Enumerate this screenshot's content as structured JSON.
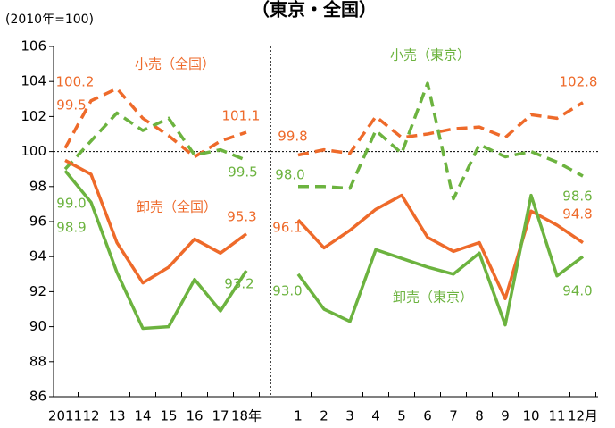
{
  "chart_data": {
    "type": "line",
    "title": "（東京・全国）",
    "y_unit_label": "(2010年=100)",
    "categories": [
      "2011",
      "12",
      "13",
      "14",
      "15",
      "16",
      "17",
      "18年",
      null,
      "1",
      "2",
      "3",
      "4",
      "5",
      "6",
      "7",
      "8",
      "9",
      "10",
      "11",
      "12月"
    ],
    "ylim": [
      86,
      106
    ],
    "yticks": [
      86,
      88,
      90,
      92,
      94,
      96,
      98,
      100,
      102,
      104,
      106
    ],
    "reference_line": 100,
    "series": [
      {
        "name": "小売（全国）",
        "color": "#ee6a2a",
        "dashed": true,
        "values": [
          100.2,
          102.9,
          103.6,
          101.9,
          100.9,
          99.7,
          100.6,
          101.1,
          null,
          99.8,
          100.1,
          99.9,
          102.0,
          100.8,
          101.0,
          101.3,
          101.4,
          100.8,
          102.1,
          101.9,
          102.8
        ],
        "value_labels": [
          "100.2",
          null,
          null,
          null,
          null,
          null,
          null,
          "101.1",
          null,
          "99.8",
          null,
          null,
          null,
          null,
          null,
          null,
          null,
          null,
          null,
          null,
          "102.8"
        ]
      },
      {
        "name": "小売（東京）",
        "color": "#6cb33f",
        "dashed": true,
        "values": [
          99.0,
          100.6,
          102.2,
          101.2,
          101.9,
          99.8,
          100.1,
          99.5,
          null,
          98.0,
          98.0,
          97.9,
          101.2,
          99.9,
          103.9,
          97.3,
          100.4,
          99.7,
          100.0,
          99.4,
          98.6
        ],
        "value_labels": [
          "99.0",
          null,
          null,
          null,
          null,
          null,
          null,
          "99.5",
          null,
          "98.0",
          null,
          null,
          null,
          null,
          null,
          null,
          null,
          null,
          null,
          null,
          "98.6"
        ]
      },
      {
        "name": "卸売（全国）",
        "color": "#ee6a2a",
        "dashed": false,
        "values": [
          99.5,
          98.7,
          94.8,
          92.5,
          93.4,
          95.0,
          94.2,
          95.3,
          null,
          96.1,
          94.5,
          95.5,
          96.7,
          97.5,
          95.1,
          94.3,
          94.8,
          91.6,
          96.6,
          95.8,
          94.8
        ],
        "value_labels": [
          "99.5",
          null,
          null,
          null,
          null,
          null,
          null,
          "95.3",
          null,
          "96.1",
          null,
          null,
          null,
          null,
          null,
          null,
          null,
          null,
          null,
          null,
          "94.8"
        ]
      },
      {
        "name": "卸売（東京）",
        "color": "#6cb33f",
        "dashed": false,
        "values": [
          98.9,
          97.1,
          93.1,
          89.9,
          90.0,
          92.7,
          90.9,
          93.2,
          null,
          93.0,
          91.0,
          90.3,
          94.4,
          93.9,
          93.4,
          93.0,
          94.2,
          90.1,
          97.5,
          92.9,
          94.0
        ],
        "value_labels": [
          "98.9",
          null,
          null,
          null,
          null,
          null,
          null,
          "93.2",
          null,
          "93.0",
          null,
          null,
          null,
          null,
          null,
          null,
          null,
          null,
          null,
          null,
          "94.0"
        ]
      }
    ]
  }
}
